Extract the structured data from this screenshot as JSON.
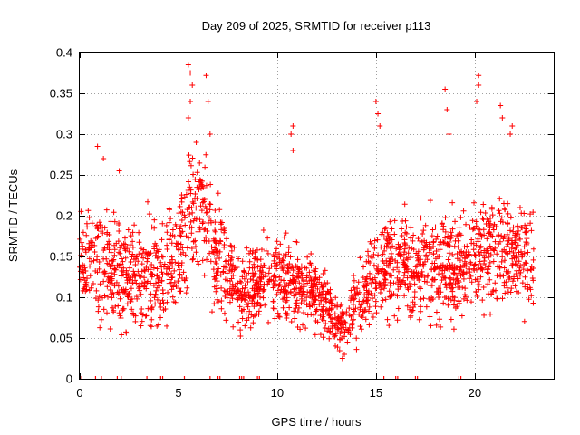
{
  "chart_data": {
    "type": "scatter",
    "title": "Day 209 of 2025, SRMTID for receiver p113",
    "xlabel": "GPS time / hours",
    "ylabel": "SRMTID / TECUs",
    "xlim": [
      0,
      24
    ],
    "ylim": [
      0,
      0.4
    ],
    "xticks": [
      0,
      5,
      10,
      15,
      20
    ],
    "xtick_labels": [
      "0",
      "5",
      "10",
      "15",
      "20"
    ],
    "yticks": [
      0,
      0.05,
      0.1,
      0.15,
      0.2,
      0.25,
      0.3,
      0.35,
      0.4
    ],
    "ytick_labels": [
      "0",
      "0.05",
      "0.1",
      "0.15",
      "0.2",
      "0.25",
      "0.3",
      "0.35",
      "0.4"
    ],
    "grid": true,
    "marker": "+",
    "color": "#ff0000",
    "envelope": {
      "hours": [
        0,
        1,
        2,
        3,
        4,
        5,
        5.5,
        6,
        6.5,
        7,
        8,
        9,
        10,
        11,
        12,
        12.5,
        13,
        13.5,
        14,
        15,
        16,
        17,
        18,
        19,
        20,
        21,
        22,
        23
      ],
      "median": [
        0.14,
        0.14,
        0.13,
        0.13,
        0.13,
        0.15,
        0.2,
        0.2,
        0.19,
        0.15,
        0.11,
        0.11,
        0.13,
        0.11,
        0.1,
        0.09,
        0.07,
        0.06,
        0.09,
        0.13,
        0.14,
        0.14,
        0.13,
        0.13,
        0.15,
        0.16,
        0.15,
        0.14
      ],
      "spread": [
        0.045,
        0.05,
        0.05,
        0.05,
        0.05,
        0.05,
        0.065,
        0.065,
        0.06,
        0.05,
        0.04,
        0.04,
        0.04,
        0.04,
        0.035,
        0.03,
        0.025,
        0.02,
        0.035,
        0.05,
        0.05,
        0.05,
        0.05,
        0.05,
        0.05,
        0.055,
        0.05,
        0.05
      ]
    },
    "outliers": [
      {
        "x": 0.9,
        "y": 0.285
      },
      {
        "x": 1.2,
        "y": 0.27
      },
      {
        "x": 2.0,
        "y": 0.255
      },
      {
        "x": 5.5,
        "y": 0.385
      },
      {
        "x": 5.6,
        "y": 0.375
      },
      {
        "x": 5.7,
        "y": 0.36
      },
      {
        "x": 5.6,
        "y": 0.34
      },
      {
        "x": 5.5,
        "y": 0.32
      },
      {
        "x": 6.4,
        "y": 0.372
      },
      {
        "x": 6.5,
        "y": 0.34
      },
      {
        "x": 6.6,
        "y": 0.3
      },
      {
        "x": 5.9,
        "y": 0.29
      },
      {
        "x": 10.8,
        "y": 0.31
      },
      {
        "x": 10.8,
        "y": 0.28
      },
      {
        "x": 10.7,
        "y": 0.3
      },
      {
        "x": 13.4,
        "y": 0.03
      },
      {
        "x": 13.3,
        "y": 0.025
      },
      {
        "x": 15.0,
        "y": 0.34
      },
      {
        "x": 15.1,
        "y": 0.325
      },
      {
        "x": 15.2,
        "y": 0.31
      },
      {
        "x": 18.5,
        "y": 0.355
      },
      {
        "x": 18.6,
        "y": 0.33
      },
      {
        "x": 18.7,
        "y": 0.3
      },
      {
        "x": 20.2,
        "y": 0.372
      },
      {
        "x": 20.2,
        "y": 0.36
      },
      {
        "x": 20.1,
        "y": 0.34
      },
      {
        "x": 21.3,
        "y": 0.335
      },
      {
        "x": 21.4,
        "y": 0.32
      },
      {
        "x": 21.9,
        "y": 0.31
      },
      {
        "x": 21.8,
        "y": 0.3
      }
    ],
    "zero_points_x": [
      0.0,
      0.1,
      0.8,
      1.1,
      1.9,
      2.1,
      3.4,
      4.1,
      4.2,
      5.3,
      6.6,
      7.0,
      7.1,
      8.1,
      8.2,
      8.3,
      9.0,
      9.1,
      15.4,
      16.0,
      16.1,
      17.0,
      17.1,
      19.2,
      19.3
    ]
  }
}
